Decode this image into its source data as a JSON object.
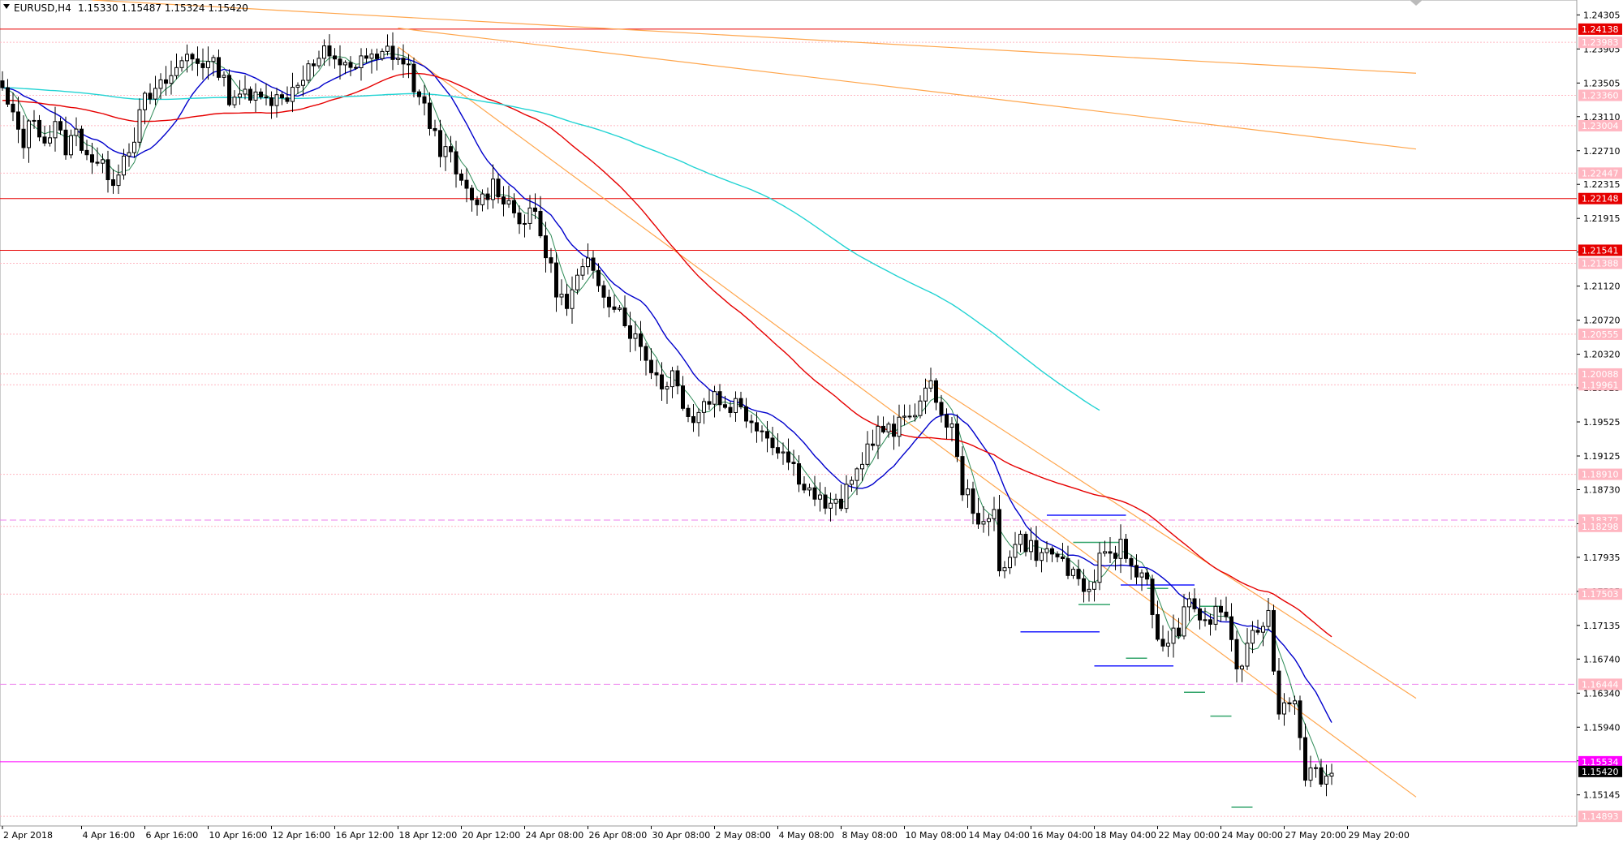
{
  "window": {
    "symbol_caption": "EURUSD,H4",
    "ohlc_caption": "1.15330 1.15487 1.15324 1.15420",
    "dropdown_icon": "triangle-down-icon",
    "scroll_marker_icon": "triangle-down-icon"
  },
  "chart_data": {
    "type": "candlestick",
    "symbol": "EURUSD",
    "timeframe": "H4",
    "ylim": [
      1.1478,
      1.2448
    ],
    "price_ticks": [
      "1.24305",
      "1.23905",
      "1.23505",
      "1.23110",
      "1.22710",
      "1.22315",
      "1.21915",
      "1.21520",
      "1.21120",
      "1.20720",
      "1.20320",
      "1.19925",
      "1.19525",
      "1.19125",
      "1.18730",
      "1.18330",
      "1.17935",
      "1.17535",
      "1.17135",
      "1.16740",
      "1.16340",
      "1.15940",
      "1.15545",
      "1.15145",
      "1.14745"
    ],
    "time_ticks": [
      {
        "label": "2 Apr 2018",
        "x": 0
      },
      {
        "label": "4 Apr 16:00",
        "x": 15
      },
      {
        "label": "6 Apr 16:00",
        "x": 27
      },
      {
        "label": "10 Apr 16:00",
        "x": 39
      },
      {
        "label": "12 Apr 16:00",
        "x": 51
      },
      {
        "label": "16 Apr 12:00",
        "x": 63
      },
      {
        "label": "18 Apr 12:00",
        "x": 75
      },
      {
        "label": "20 Apr 12:00",
        "x": 87
      },
      {
        "label": "24 Apr 08:00",
        "x": 99
      },
      {
        "label": "26 Apr 08:00",
        "x": 111
      },
      {
        "label": "30 Apr 08:00",
        "x": 123
      },
      {
        "label": "2 May 08:00",
        "x": 135
      },
      {
        "label": "4 May 08:00",
        "x": 147
      },
      {
        "label": "8 May 08:00",
        "x": 159
      },
      {
        "label": "10 May 08:00",
        "x": 171
      },
      {
        "label": "14 May 04:00",
        "x": 183
      },
      {
        "label": "16 May 04:00",
        "x": 195
      },
      {
        "label": "18 May 04:00",
        "x": 207
      },
      {
        "label": "22 May 00:00",
        "x": 219
      },
      {
        "label": "24 May 00:00",
        "x": 231
      },
      {
        "label": "27 May 20:00",
        "x": 243
      },
      {
        "label": "29 May 20:00",
        "x": 255
      }
    ],
    "last_price": {
      "label": "1.15420",
      "value": 1.1542
    },
    "levels": [
      {
        "label": "1.24138",
        "value": 1.24138,
        "color": "#e60000",
        "style": "solid"
      },
      {
        "label": "1.23983",
        "value": 1.23983,
        "color": "#ffb6c1",
        "style": "dotted"
      },
      {
        "label": "1.23360",
        "value": 1.2336,
        "color": "#ffb6c1",
        "style": "dotted"
      },
      {
        "label": "1.23004",
        "value": 1.23004,
        "color": "#ffb6c1",
        "style": "dotted"
      },
      {
        "label": "1.22447",
        "value": 1.22447,
        "color": "#ffb6c1",
        "style": "dotted"
      },
      {
        "label": "1.22148",
        "value": 1.22148,
        "color": "#e60000",
        "style": "solid"
      },
      {
        "label": "1.21541",
        "value": 1.21541,
        "color": "#e60000",
        "style": "solid"
      },
      {
        "label": "1.21388",
        "value": 1.21388,
        "color": "#ffb6c1",
        "style": "dotted"
      },
      {
        "label": "1.20555",
        "value": 1.20555,
        "color": "#ffb6c1",
        "style": "dotted"
      },
      {
        "label": "1.20088",
        "value": 1.20088,
        "color": "#ffb6c1",
        "style": "dotted"
      },
      {
        "label": "1.19961",
        "value": 1.19961,
        "color": "#ffb6c1",
        "style": "dotted"
      },
      {
        "label": "1.18910",
        "value": 1.1891,
        "color": "#ffb6c1",
        "style": "dotted"
      },
      {
        "label": "1.18372",
        "value": 1.18372,
        "color": "#ee82ee",
        "style": "dashed"
      },
      {
        "label": "1.18298",
        "value": 1.18298,
        "color": "#ffb6c1",
        "style": "dotted"
      },
      {
        "label": "1.17503",
        "value": 1.17503,
        "color": "#ffb6c1",
        "style": "dotted"
      },
      {
        "label": "1.16444",
        "value": 1.16444,
        "color": "#ee82ee",
        "style": "dashed"
      },
      {
        "label": "1.15534",
        "value": 1.15534,
        "color": "#ff00ff",
        "style": "solid"
      },
      {
        "label": "1.14893",
        "value": 1.14893,
        "color": "#ffb6c1",
        "style": "dotted"
      }
    ],
    "trendlines": [
      {
        "color": "#ffa64d",
        "from": [
          17,
          1.2448
        ],
        "to": [
          268,
          1.2362
        ]
      },
      {
        "color": "#ffa64d",
        "from": [
          75,
          1.2415
        ],
        "to": [
          268,
          1.2273
        ]
      },
      {
        "color": "#ffa64d",
        "from": [
          75,
          1.2393
        ],
        "to": [
          268,
          1.1512
        ]
      },
      {
        "color": "#ffa64d",
        "from": [
          175,
          1.2002
        ],
        "to": [
          268,
          1.1628
        ]
      }
    ],
    "zones": [
      {
        "color": "#1a1aff",
        "from": [
          198,
          1.1843
        ],
        "to": [
          213,
          1.1843
        ]
      },
      {
        "color": "#1a1aff",
        "from": [
          193,
          1.1706
        ],
        "to": [
          208,
          1.1706
        ]
      },
      {
        "color": "#1a1aff",
        "from": [
          212,
          1.1761
        ],
        "to": [
          226,
          1.1761
        ]
      },
      {
        "color": "#1a1aff",
        "from": [
          207,
          1.1666
        ],
        "to": [
          222,
          1.1666
        ]
      },
      {
        "color": "#33a56b",
        "from": [
          203,
          1.1811
        ],
        "to": [
          212,
          1.1811
        ]
      },
      {
        "color": "#33a56b",
        "from": [
          204,
          1.1738
        ],
        "to": [
          210,
          1.1738
        ]
      },
      {
        "color": "#33a56b",
        "from": [
          213,
          1.1675
        ],
        "to": [
          217,
          1.1675
        ]
      },
      {
        "color": "#33a56b",
        "from": [
          217,
          1.1757
        ],
        "to": [
          221,
          1.1757
        ]
      },
      {
        "color": "#33a56b",
        "from": [
          224,
          1.1635
        ],
        "to": [
          228,
          1.1635
        ]
      },
      {
        "color": "#33a56b",
        "from": [
          227,
          1.1736
        ],
        "to": [
          231,
          1.1736
        ]
      },
      {
        "color": "#33a56b",
        "from": [
          229,
          1.1607
        ],
        "to": [
          233,
          1.1607
        ]
      },
      {
        "color": "#33a56b",
        "from": [
          233,
          1.15
        ],
        "to": [
          237,
          1.15
        ]
      }
    ],
    "ma_ribbon": [
      {
        "name": "green",
        "color": "#2e8b57",
        "width": 1,
        "period": 5
      },
      {
        "name": "blue",
        "color": "#0000cc",
        "width": 1.4,
        "period": 14
      },
      {
        "name": "red",
        "color": "#e60000",
        "width": 1.4,
        "period": 50
      },
      {
        "name": "cyan",
        "color": "#22d3d3",
        "width": 1.4,
        "period": 120
      }
    ],
    "anchors": [
      [
        0,
        1.234
      ],
      [
        2,
        1.2308
      ],
      [
        4,
        1.2283
      ],
      [
        6,
        1.2312
      ],
      [
        8,
        1.2282
      ],
      [
        10,
        1.2299
      ],
      [
        12,
        1.2275
      ],
      [
        14,
        1.2292
      ],
      [
        16,
        1.227
      ],
      [
        18,
        1.2254
      ],
      [
        20,
        1.2246
      ],
      [
        21,
        1.2238
      ],
      [
        23,
        1.2265
      ],
      [
        25,
        1.229
      ],
      [
        27,
        1.233
      ],
      [
        29,
        1.2338
      ],
      [
        31,
        1.2352
      ],
      [
        33,
        1.2366
      ],
      [
        35,
        1.2384
      ],
      [
        37,
        1.2378
      ],
      [
        39,
        1.2372
      ],
      [
        41,
        1.2368
      ],
      [
        43,
        1.2335
      ],
      [
        45,
        1.234
      ],
      [
        47,
        1.2328
      ],
      [
        49,
        1.2345
      ],
      [
        51,
        1.2333
      ],
      [
        53,
        1.233
      ],
      [
        55,
        1.2345
      ],
      [
        57,
        1.2362
      ],
      [
        59,
        1.2372
      ],
      [
        61,
        1.2385
      ],
      [
        63,
        1.2372
      ],
      [
        65,
        1.2378
      ],
      [
        67,
        1.2368
      ],
      [
        69,
        1.238
      ],
      [
        71,
        1.2375
      ],
      [
        73,
        1.239
      ],
      [
        75,
        1.238
      ],
      [
        77,
        1.2366
      ],
      [
        79,
        1.233
      ],
      [
        81,
        1.2305
      ],
      [
        83,
        1.2275
      ],
      [
        85,
        1.226
      ],
      [
        87,
        1.223
      ],
      [
        89,
        1.221
      ],
      [
        91,
        1.2215
      ],
      [
        93,
        1.2232
      ],
      [
        95,
        1.2218
      ],
      [
        97,
        1.22
      ],
      [
        99,
        1.2188
      ],
      [
        101,
        1.2198
      ],
      [
        103,
        1.215
      ],
      [
        105,
        1.211
      ],
      [
        107,
        1.2085
      ],
      [
        109,
        1.212
      ],
      [
        111,
        1.2135
      ],
      [
        113,
        1.2118
      ],
      [
        115,
        1.2098
      ],
      [
        117,
        1.2085
      ],
      [
        119,
        1.206
      ],
      [
        121,
        1.204
      ],
      [
        123,
        1.2018
      ],
      [
        125,
        1.1995
      ],
      [
        127,
        1.201
      ],
      [
        129,
        1.1978
      ],
      [
        131,
        1.1955
      ],
      [
        133,
        1.1975
      ],
      [
        135,
        1.1985
      ],
      [
        137,
        1.197
      ],
      [
        139,
        1.1975
      ],
      [
        141,
        1.196
      ],
      [
        143,
        1.1952
      ],
      [
        145,
        1.1935
      ],
      [
        147,
        1.1925
      ],
      [
        149,
        1.1908
      ],
      [
        151,
        1.189
      ],
      [
        153,
        1.1872
      ],
      [
        155,
        1.186
      ],
      [
        157,
        1.185
      ],
      [
        159,
        1.1858
      ],
      [
        161,
        1.188
      ],
      [
        163,
        1.191
      ],
      [
        165,
        1.1935
      ],
      [
        167,
        1.1945
      ],
      [
        169,
        1.1938
      ],
      [
        171,
        1.1958
      ],
      [
        173,
        1.197
      ],
      [
        175,
        1.1985
      ],
      [
        176,
        1.199
      ],
      [
        177,
        1.1985
      ],
      [
        178,
        1.196
      ],
      [
        180,
        1.1945
      ],
      [
        181,
        1.1905
      ],
      [
        182,
        1.1875
      ],
      [
        184,
        1.1855
      ],
      [
        186,
        1.1825
      ],
      [
        188,
        1.1845
      ],
      [
        189,
        1.178
      ],
      [
        191,
        1.18
      ],
      [
        193,
        1.1815
      ],
      [
        195,
        1.1805
      ],
      [
        197,
        1.1795
      ],
      [
        199,
        1.18
      ],
      [
        201,
        1.1788
      ],
      [
        203,
        1.177
      ],
      [
        205,
        1.1745
      ],
      [
        207,
        1.1772
      ],
      [
        208,
        1.179
      ],
      [
        209,
        1.1805
      ],
      [
        211,
        1.179
      ],
      [
        212,
        1.1825
      ],
      [
        213,
        1.179
      ],
      [
        215,
        1.178
      ],
      [
        217,
        1.176
      ],
      [
        218,
        1.172
      ],
      [
        219,
        1.17
      ],
      [
        221,
        1.169
      ],
      [
        223,
        1.1712
      ],
      [
        225,
        1.1738
      ],
      [
        227,
        1.1725
      ],
      [
        229,
        1.1718
      ],
      [
        231,
        1.1735
      ],
      [
        233,
        1.17
      ],
      [
        234,
        1.166
      ],
      [
        236,
        1.1682
      ],
      [
        238,
        1.1712
      ],
      [
        240,
        1.1725
      ],
      [
        241,
        1.167
      ],
      [
        242,
        1.161
      ],
      [
        243,
        1.1625
      ],
      [
        245,
        1.1632
      ],
      [
        247,
        1.1542
      ],
      [
        249,
        1.154
      ],
      [
        251,
        1.1535
      ],
      [
        252,
        1.1542
      ]
    ]
  }
}
